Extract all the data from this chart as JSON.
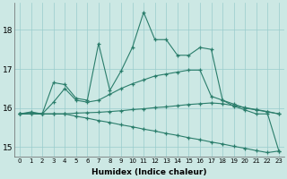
{
  "xlabel": "Humidex (Indice chaleur)",
  "x_values": [
    0,
    1,
    2,
    3,
    4,
    5,
    6,
    7,
    8,
    9,
    10,
    11,
    12,
    13,
    14,
    15,
    16,
    17,
    18,
    19,
    20,
    21,
    22,
    23
  ],
  "lines": [
    [
      15.85,
      15.9,
      15.85,
      16.65,
      16.6,
      16.25,
      16.2,
      17.65,
      16.45,
      16.95,
      17.55,
      18.45,
      17.75,
      17.75,
      17.35,
      17.35,
      17.55,
      17.5,
      16.2,
      16.05,
      15.95,
      15.85,
      15.85,
      14.9
    ],
    [
      15.85,
      15.88,
      15.85,
      16.15,
      16.5,
      16.2,
      16.15,
      16.2,
      16.35,
      16.5,
      16.62,
      16.72,
      16.82,
      16.87,
      16.92,
      16.97,
      16.97,
      16.3,
      16.2,
      16.1,
      16.0,
      15.95,
      15.9,
      15.85
    ],
    [
      15.85,
      15.85,
      15.85,
      15.85,
      15.85,
      15.87,
      15.88,
      15.89,
      15.91,
      15.93,
      15.96,
      15.98,
      16.01,
      16.03,
      16.06,
      16.09,
      16.11,
      16.13,
      16.11,
      16.06,
      16.01,
      15.96,
      15.91,
      15.85
    ],
    [
      15.85,
      15.85,
      15.85,
      15.85,
      15.85,
      15.79,
      15.74,
      15.68,
      15.63,
      15.57,
      15.52,
      15.46,
      15.41,
      15.35,
      15.3,
      15.24,
      15.19,
      15.13,
      15.08,
      15.02,
      14.97,
      14.91,
      14.86,
      14.9
    ]
  ],
  "line_color": "#2a7d6b",
  "bg_color": "#cce8e4",
  "grid_color": "#99cccc",
  "ylim": [
    14.75,
    18.7
  ],
  "yticks": [
    15,
    16,
    17,
    18
  ],
  "marker": "+"
}
